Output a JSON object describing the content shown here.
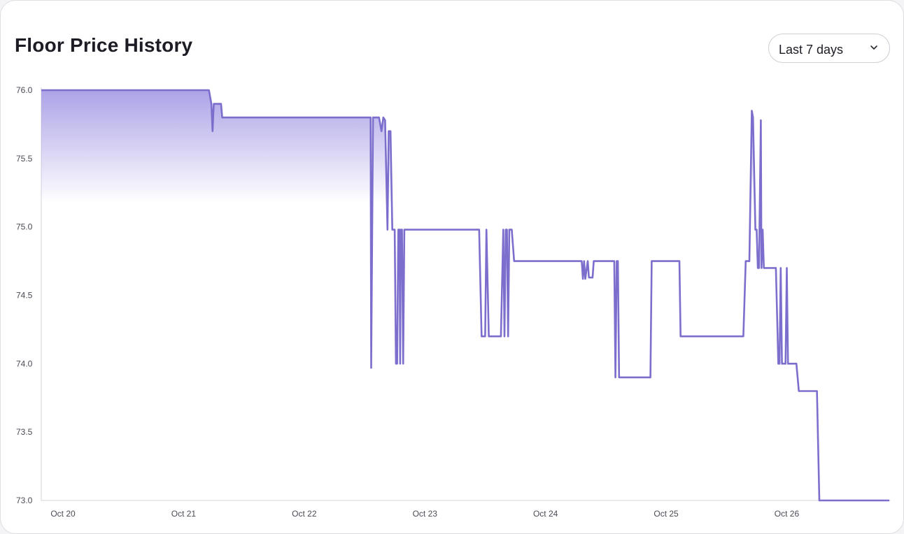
{
  "header": {
    "title": "Floor Price History",
    "range_select": {
      "value": "Last 7 days",
      "icon": "chevron-down-icon"
    }
  },
  "colors": {
    "line": "#7b6ecc",
    "fill_top": "#9e93e3",
    "axis": "#d5d5dc"
  },
  "chart_data": {
    "type": "line",
    "title": "Floor Price History",
    "xlabel": "",
    "ylabel": "",
    "ylim": [
      73.0,
      76.0
    ],
    "xlim": [
      -0.18,
      6.85
    ],
    "y_ticks": [
      "76.0",
      "75.5",
      "75.0",
      "74.5",
      "74.0",
      "73.5",
      "73.0"
    ],
    "y_tick_values": [
      76.0,
      75.5,
      75.0,
      74.5,
      74.0,
      73.5,
      73.0
    ],
    "x_ticks": [
      "Oct 20",
      "Oct 21",
      "Oct 22",
      "Oct 23",
      "Oct 24",
      "Oct 25",
      "Oct 26"
    ],
    "x_tick_values": [
      0,
      1,
      2,
      3,
      4,
      5,
      6
    ],
    "grid": false,
    "area_fill": "gradient under the line on Oct 20 – Oct 22",
    "series": [
      {
        "points": [
          [
            -0.18,
            76.0
          ],
          [
            1.21,
            76.0
          ],
          [
            1.23,
            75.9
          ],
          [
            1.24,
            75.7
          ],
          [
            1.25,
            75.9
          ],
          [
            1.31,
            75.9
          ],
          [
            1.32,
            75.8
          ],
          [
            1.7,
            75.8
          ],
          [
            2.2,
            75.8
          ],
          [
            2.55,
            75.8
          ],
          [
            2.555,
            73.97
          ],
          [
            2.57,
            75.8
          ],
          [
            2.62,
            75.8
          ],
          [
            2.64,
            75.7
          ],
          [
            2.655,
            75.8
          ],
          [
            2.67,
            75.78
          ],
          [
            2.69,
            74.98
          ],
          [
            2.7,
            75.7
          ],
          [
            2.715,
            75.7
          ],
          [
            2.73,
            74.98
          ],
          [
            2.75,
            74.98
          ],
          [
            2.76,
            74.0
          ],
          [
            2.77,
            74.0
          ],
          [
            2.78,
            74.98
          ],
          [
            2.79,
            74.98
          ],
          [
            2.795,
            74.0
          ],
          [
            2.8,
            74.98
          ],
          [
            2.81,
            74.98
          ],
          [
            2.82,
            74.0
          ],
          [
            2.83,
            74.98
          ],
          [
            3.45,
            74.98
          ],
          [
            3.47,
            74.2
          ],
          [
            3.5,
            74.2
          ],
          [
            3.51,
            74.98
          ],
          [
            3.53,
            74.2
          ],
          [
            3.63,
            74.2
          ],
          [
            3.65,
            74.98
          ],
          [
            3.66,
            74.2
          ],
          [
            3.67,
            74.98
          ],
          [
            3.68,
            74.98
          ],
          [
            3.69,
            74.2
          ],
          [
            3.7,
            74.98
          ],
          [
            3.72,
            74.98
          ],
          [
            3.74,
            74.75
          ],
          [
            4.3,
            74.75
          ],
          [
            4.31,
            74.62
          ],
          [
            4.32,
            74.75
          ],
          [
            4.33,
            74.62
          ],
          [
            4.35,
            74.75
          ],
          [
            4.36,
            74.63
          ],
          [
            4.39,
            74.63
          ],
          [
            4.4,
            74.75
          ],
          [
            4.57,
            74.75
          ],
          [
            4.58,
            73.9
          ],
          [
            4.59,
            74.75
          ],
          [
            4.6,
            74.75
          ],
          [
            4.61,
            73.9
          ],
          [
            4.87,
            73.9
          ],
          [
            4.88,
            74.75
          ],
          [
            5.11,
            74.75
          ],
          [
            5.12,
            74.2
          ],
          [
            5.64,
            74.2
          ],
          [
            5.66,
            74.75
          ],
          [
            5.69,
            74.75
          ],
          [
            5.71,
            75.85
          ],
          [
            5.72,
            75.8
          ],
          [
            5.74,
            74.98
          ],
          [
            5.75,
            74.98
          ],
          [
            5.76,
            74.7
          ],
          [
            5.77,
            74.7
          ],
          [
            5.785,
            75.78
          ],
          [
            5.79,
            74.7
          ],
          [
            5.8,
            74.98
          ],
          [
            5.81,
            74.7
          ],
          [
            5.91,
            74.7
          ],
          [
            5.93,
            74.0
          ],
          [
            5.94,
            74.0
          ],
          [
            5.95,
            74.7
          ],
          [
            5.96,
            74.0
          ],
          [
            5.99,
            74.0
          ],
          [
            6.0,
            74.7
          ],
          [
            6.01,
            74.0
          ],
          [
            6.02,
            74.0
          ],
          [
            6.03,
            74.0
          ],
          [
            6.08,
            74.0
          ],
          [
            6.1,
            73.8
          ],
          [
            6.25,
            73.8
          ],
          [
            6.27,
            73.0
          ],
          [
            6.85,
            73.0
          ]
        ]
      }
    ]
  }
}
